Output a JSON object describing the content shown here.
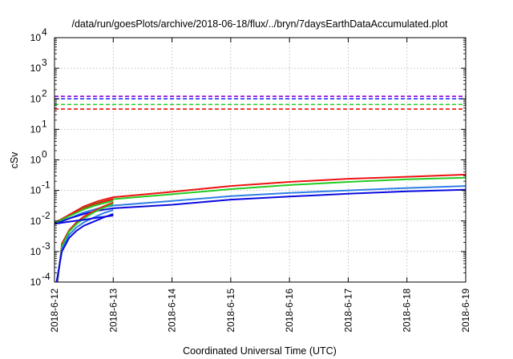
{
  "chart_data": {
    "type": "line",
    "title": "/data/run/goesPlots/archive/2018-06-18/flux/../bryn/7daysEarthDataAccumulated.plot",
    "xlabel": "Coordinated Universal Time (UTC)",
    "ylabel": "cSv",
    "y_scale": "log",
    "ylim": [
      0.0001,
      10000
    ],
    "xlim": [
      "2018-6-12",
      "2018-6-19"
    ],
    "x_ticks": [
      "2018-6-12",
      "2018-6-13",
      "2018-6-14",
      "2018-6-15",
      "2018-6-16",
      "2018-6-17",
      "2018-6-18",
      "2018-6-19"
    ],
    "y_ticks": [
      {
        "value": 0.0001,
        "mant": "10",
        "exp": "-4"
      },
      {
        "value": 0.001,
        "mant": "10",
        "exp": "-3"
      },
      {
        "value": 0.01,
        "mant": "10",
        "exp": "-2"
      },
      {
        "value": 0.1,
        "mant": "10",
        "exp": "-1"
      },
      {
        "value": 1,
        "mant": "10",
        "exp": "0"
      },
      {
        "value": 10,
        "mant": "10",
        "exp": "1"
      },
      {
        "value": 100,
        "mant": "10",
        "exp": "2"
      },
      {
        "value": 1000,
        "mant": "10",
        "exp": "3"
      },
      {
        "value": 10000,
        "mant": "10",
        "exp": "4"
      }
    ],
    "grid": true,
    "legend": "none",
    "thresholds": [
      {
        "value": 120,
        "color": "#9400d3",
        "style": "dashed"
      },
      {
        "value": 100,
        "color": "#1a1aff",
        "style": "dashed"
      },
      {
        "value": 65,
        "color": "#22cc22",
        "style": "dashed"
      },
      {
        "value": 46,
        "color": "#ee1111",
        "style": "dashed"
      }
    ],
    "series": [
      {
        "color": "#ee1111",
        "x": [
          "2018-06-12 00:00",
          "2018-06-12 06:00",
          "2018-06-12 12:00",
          "2018-06-12 18:00",
          "2018-06-13 00:00",
          "2018-06-14 00:00",
          "2018-06-15 00:00",
          "2018-06-16 00:00",
          "2018-06-17 00:00",
          "2018-06-18 00:00",
          "2018-06-19 00:00"
        ],
        "y": [
          0.008,
          0.016,
          0.03,
          0.045,
          0.06,
          0.09,
          0.14,
          0.19,
          0.24,
          0.28,
          0.33
        ]
      },
      {
        "color": "#22cc22",
        "x": [
          "2018-06-12 00:00",
          "2018-06-12 06:00",
          "2018-06-12 12:00",
          "2018-06-12 18:00",
          "2018-06-13 00:00",
          "2018-06-14 00:00",
          "2018-06-15 00:00",
          "2018-06-16 00:00",
          "2018-06-17 00:00",
          "2018-06-18 00:00",
          "2018-06-19 00:00"
        ],
        "y": [
          0.008,
          0.015,
          0.027,
          0.04,
          0.052,
          0.075,
          0.11,
          0.15,
          0.19,
          0.23,
          0.26
        ]
      },
      {
        "color": "#2f7fe6",
        "x": [
          "2018-06-12 00:00",
          "2018-06-12 06:00",
          "2018-06-12 12:00",
          "2018-06-12 18:00",
          "2018-06-13 00:00",
          "2018-06-14 00:00",
          "2018-06-15 00:00",
          "2018-06-16 00:00",
          "2018-06-17 00:00",
          "2018-06-18 00:00",
          "2018-06-19 00:00"
        ],
        "y": [
          0.008,
          0.012,
          0.019,
          0.026,
          0.032,
          0.045,
          0.065,
          0.083,
          0.1,
          0.12,
          0.14
        ]
      },
      {
        "color": "#0a0ae0",
        "x": [
          "2018-06-12 00:00",
          "2018-06-12 06:00",
          "2018-06-12 12:00",
          "2018-06-12 18:00",
          "2018-06-13 00:00",
          "2018-06-14 00:00",
          "2018-06-15 00:00",
          "2018-06-16 00:00",
          "2018-06-17 00:00",
          "2018-06-18 00:00",
          "2018-06-19 00:00"
        ],
        "y": [
          0.008,
          0.012,
          0.017,
          0.022,
          0.026,
          0.034,
          0.05,
          0.063,
          0.078,
          0.093,
          0.105
        ]
      },
      {
        "color": "#ee1111",
        "x": [
          "2018-06-12 00:00",
          "2018-06-12 04:00",
          "2018-06-12 08:00",
          "2018-06-12 12:00",
          "2018-06-12 16:00",
          "2018-06-12 20:00",
          "2018-06-13 00:00"
        ],
        "y": [
          0.0085,
          0.013,
          0.019,
          0.026,
          0.034,
          0.043,
          0.052
        ]
      },
      {
        "color": "#22cc22",
        "x": [
          "2018-06-12 00:00",
          "2018-06-12 04:00",
          "2018-06-12 08:00",
          "2018-06-12 12:00",
          "2018-06-12 16:00",
          "2018-06-12 20:00",
          "2018-06-13 00:00"
        ],
        "y": [
          0.0085,
          0.012,
          0.017,
          0.024,
          0.031,
          0.038,
          0.046
        ]
      },
      {
        "color": "#ee1111",
        "x": [
          "2018-06-12 01:12",
          "2018-06-12 03:00",
          "2018-06-12 06:00",
          "2018-06-12 09:00",
          "2018-06-12 12:00",
          "2018-06-12 16:00",
          "2018-06-12 20:00",
          "2018-06-13 00:00"
        ],
        "y": [
          0.0001,
          0.0018,
          0.005,
          0.009,
          0.014,
          0.021,
          0.03,
          0.04
        ]
      },
      {
        "color": "#22cc22",
        "x": [
          "2018-06-12 01:05",
          "2018-06-12 03:00",
          "2018-06-12 06:00",
          "2018-06-12 09:00",
          "2018-06-12 12:00",
          "2018-06-12 16:00",
          "2018-06-12 20:00",
          "2018-06-13 00:00"
        ],
        "y": [
          0.0001,
          0.0015,
          0.0045,
          0.008,
          0.012,
          0.019,
          0.027,
          0.036
        ]
      },
      {
        "color": "#2f7fe6",
        "x": [
          "2018-06-12 00:58",
          "2018-06-12 03:00",
          "2018-06-12 06:00",
          "2018-06-12 09:00",
          "2018-06-12 12:00",
          "2018-06-12 16:00",
          "2018-06-12 20:00",
          "2018-06-13 00:00"
        ],
        "y": [
          0.0001,
          0.0012,
          0.0035,
          0.0062,
          0.009,
          0.013,
          0.018,
          0.023
        ]
      },
      {
        "color": "#0a0ae0",
        "x": [
          "2018-06-12 00:50",
          "2018-06-12 03:00",
          "2018-06-12 06:00",
          "2018-06-12 09:00",
          "2018-06-12 12:00",
          "2018-06-12 16:00",
          "2018-06-12 20:00",
          "2018-06-13 00:00"
        ],
        "y": [
          0.0001,
          0.001,
          0.0028,
          0.0048,
          0.007,
          0.0095,
          0.013,
          0.017
        ]
      },
      {
        "color": "#0a0ae0",
        "x": [
          "2018-06-12 00:00",
          "2018-06-12 06:00",
          "2018-06-12 12:00",
          "2018-06-12 18:00",
          "2018-06-13 00:00"
        ],
        "y": [
          0.008,
          0.0095,
          0.011,
          0.013,
          0.015
        ]
      }
    ]
  }
}
